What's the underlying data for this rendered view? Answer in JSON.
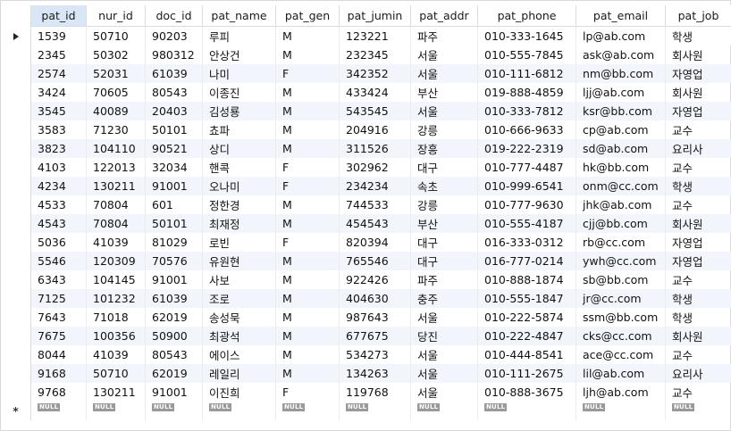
{
  "columns": [
    "pat_id",
    "nur_id",
    "doc_id",
    "pat_name",
    "pat_gen",
    "pat_jumin",
    "pat_addr",
    "pat_phone",
    "pat_email",
    "pat_job"
  ],
  "sorted_column_index": 0,
  "null_label": "NULL",
  "rows": [
    [
      "1539",
      "50710",
      "90203",
      "루피",
      "M",
      "123221",
      "파주",
      "010-333-1645",
      "lp@ab.com",
      "학생"
    ],
    [
      "2345",
      "50302",
      "980312",
      "안상건",
      "M",
      "232345",
      "서울",
      "010-555-7845",
      "ask@ab.com",
      "회사원"
    ],
    [
      "2574",
      "52031",
      "61039",
      "나미",
      "F",
      "342352",
      "서울",
      "010-111-6812",
      "nm@bb.com",
      "자영업"
    ],
    [
      "3424",
      "70605",
      "80543",
      "이종진",
      "M",
      "433424",
      "부산",
      "019-888-4859",
      "ljj@ab.com",
      "회사원"
    ],
    [
      "3545",
      "40089",
      "20403",
      "김성룡",
      "M",
      "543545",
      "서울",
      "010-333-7812",
      "ksr@bb.com",
      "자영업"
    ],
    [
      "3583",
      "71230",
      "50101",
      "쵸파",
      "M",
      "204916",
      "강릉",
      "010-666-9633",
      "cp@ab.com",
      "교수"
    ],
    [
      "3823",
      "104110",
      "90521",
      "상디",
      "M",
      "311526",
      "장흥",
      "019-222-2319",
      "sd@ab.com",
      "요리사"
    ],
    [
      "4103",
      "122013",
      "32034",
      "핸콕",
      "F",
      "302962",
      "대구",
      "010-777-4487",
      "hk@bb.com",
      "교수"
    ],
    [
      "4234",
      "130211",
      "91001",
      "오나미",
      "F",
      "234234",
      "속초",
      "010-999-6541",
      "onm@cc.com",
      "학생"
    ],
    [
      "4533",
      "70804",
      "601",
      "정한경",
      "M",
      "744533",
      "강릉",
      "010-777-9630",
      "jhk@ab.com",
      "교수"
    ],
    [
      "4543",
      "70804",
      "50101",
      "최재정",
      "M",
      "454543",
      "부산",
      "010-555-4187",
      "cjj@bb.com",
      "회사원"
    ],
    [
      "5036",
      "41039",
      "81029",
      "로빈",
      "F",
      "820394",
      "대구",
      "016-333-0312",
      "rb@cc.com",
      "자영업"
    ],
    [
      "5546",
      "120309",
      "70576",
      "유원현",
      "M",
      "765546",
      "대구",
      "016-777-0214",
      "ywh@cc.com",
      "자영업"
    ],
    [
      "6343",
      "104145",
      "91001",
      "사보",
      "M",
      "922426",
      "파주",
      "010-888-1874",
      "sb@bb.com",
      "교수"
    ],
    [
      "7125",
      "101232",
      "61039",
      "조로",
      "M",
      "404630",
      "충주",
      "010-555-1847",
      "jr@cc.com",
      "학생"
    ],
    [
      "7643",
      "71018",
      "62019",
      "송성묵",
      "M",
      "987643",
      "서울",
      "010-222-5874",
      "ssm@bb.com",
      "학생"
    ],
    [
      "7675",
      "100356",
      "50900",
      "최광석",
      "M",
      "677675",
      "당진",
      "010-222-4847",
      "cks@cc.com",
      "회사원"
    ],
    [
      "8044",
      "41039",
      "80543",
      "에이스",
      "M",
      "534273",
      "서울",
      "010-444-8541",
      "ace@cc.com",
      "교수"
    ],
    [
      "9168",
      "50710",
      "62019",
      "레일리",
      "M",
      "134263",
      "서울",
      "010-111-2675",
      "lil@ab.com",
      "요리사"
    ],
    [
      "9768",
      "130211",
      "91001",
      "이진희",
      "F",
      "119768",
      "서울",
      "010-888-3675",
      "ljh@ab.com",
      "교수"
    ]
  ],
  "icons": {
    "current_row": "arrow-right-icon",
    "new_row": "asterisk-icon"
  }
}
